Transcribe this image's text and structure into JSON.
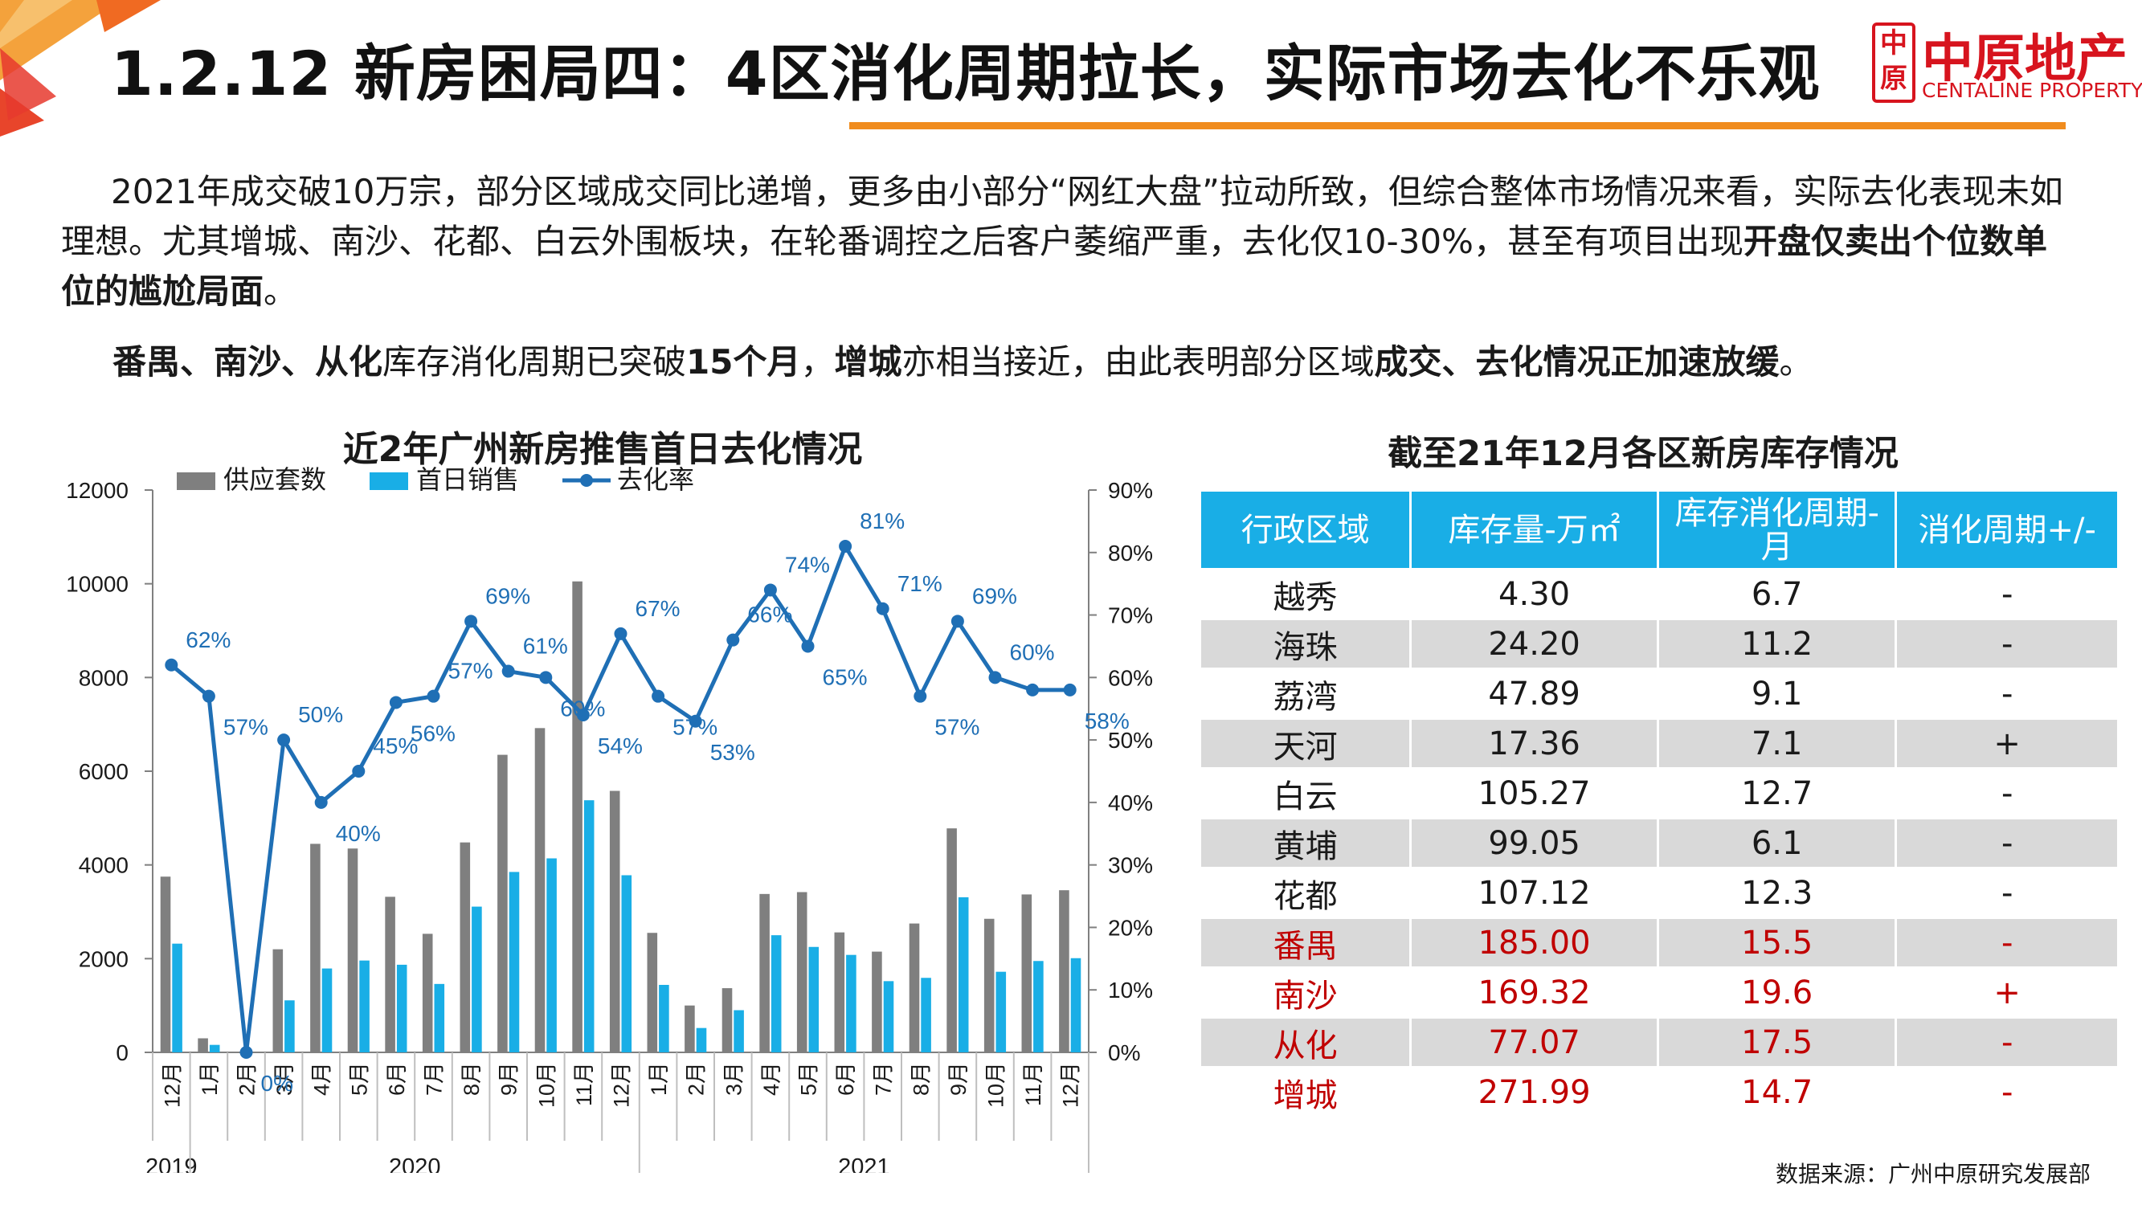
{
  "header": {
    "title": "1.2.12 新房困局四：4区消化周期拉长，实际市场去化不乐观",
    "logo_cn": "中原地产",
    "logo_mark": "中原",
    "logo_en": "CENTALINE PROPERTY"
  },
  "paragraph1": {
    "text_a": "2021年成交破10万宗，部分区域成交同比递增，更多由小部分“网红大盘”拉动所致，但综合整体市场情况来看，实际去化表现未如理想。尤其增城、南沙、花都、白云外围板块，在轮番调控之后客户萎缩严重，去化仅10-30%，甚至有项目出现",
    "text_b": "开盘仅卖出个位数单位的尴尬局面",
    "text_c": "。"
  },
  "paragraph2": {
    "s1": "番禺、南沙、从化",
    "s2": "库存消化周期已突破",
    "s3": "15个月",
    "s4": "，",
    "s5": "增城",
    "s6": "亦相当接近，由此表明部分区域",
    "s7": "成交、去化情况正加速放缓",
    "s8": "。"
  },
  "chart_title": "近2年广州新房推售首日去化情况",
  "chart_data": {
    "type": "bar",
    "title": "近2年广州新房推售首日去化情况",
    "categories": [
      "12月",
      "1月",
      "2月",
      "3月",
      "4月",
      "5月",
      "6月",
      "7月",
      "8月",
      "9月",
      "10月",
      "11月",
      "12月",
      "1月",
      "2月",
      "3月",
      "4月",
      "5月",
      "6月",
      "7月",
      "8月",
      "9月",
      "10月",
      "11月",
      "12月"
    ],
    "year_groups": [
      {
        "label": "2019",
        "start": 0,
        "end": 0
      },
      {
        "label": "2020",
        "start": 1,
        "end": 12
      },
      {
        "label": "2021",
        "start": 13,
        "end": 24
      }
    ],
    "series": [
      {
        "name": "供应套数",
        "kind": "bar",
        "axis": "left",
        "color": "#7f7f7f",
        "values": [
          3750,
          300,
          0,
          2200,
          4450,
          4350,
          3320,
          2530,
          4480,
          6350,
          6920,
          10050,
          5580,
          2550,
          1000,
          1370,
          3380,
          3420,
          2560,
          2150,
          2750,
          4780,
          2850,
          3370,
          3460
        ]
      },
      {
        "name": "首日销售",
        "kind": "bar",
        "axis": "left",
        "color": "#19aee6",
        "values": [
          2320,
          160,
          0,
          1110,
          1790,
          1960,
          1870,
          1460,
          3110,
          3850,
          4140,
          5380,
          3780,
          1440,
          520,
          900,
          2500,
          2250,
          2080,
          1520,
          1590,
          3310,
          1720,
          1950,
          2010
        ]
      },
      {
        "name": "去化率",
        "kind": "line",
        "axis": "right",
        "color": "#1f6fb5",
        "values": [
          62,
          57,
          0,
          50,
          40,
          45,
          56,
          57,
          69,
          61,
          60,
          54,
          67,
          57,
          53,
          66,
          74,
          65,
          81,
          71,
          57,
          69,
          60,
          58,
          58
        ],
        "labels": [
          "62%",
          "57%",
          "0%",
          "50%",
          "40%",
          "45%",
          "56%",
          "57%",
          "69%",
          "61%",
          "60%",
          "54%",
          "67%",
          "57%",
          "53%",
          "66%",
          "74%",
          "65%",
          "81%",
          "71%",
          "57%",
          "69%",
          "60%",
          "",
          "58%"
        ]
      }
    ],
    "left_axis": {
      "min": 0,
      "max": 12000,
      "ticks": [
        "0",
        "2000",
        "4000",
        "6000",
        "8000",
        "10000",
        "12000"
      ]
    },
    "right_axis": {
      "min": 0,
      "max": 90,
      "ticks": [
        "0%",
        "10%",
        "20%",
        "30%",
        "40%",
        "50%",
        "60%",
        "70%",
        "80%",
        "90%"
      ]
    },
    "legend_position": "top-left",
    "grid": false
  },
  "table": {
    "title": "截至21年12月各区新房库存情况",
    "headers": [
      "行政区域",
      "库存量-万㎡",
      "库存消化周期-月",
      "消化周期+/-"
    ],
    "rows": [
      {
        "district": "越秀",
        "inventory": "4.30",
        "cycle": "6.7",
        "change": "-"
      },
      {
        "district": "海珠",
        "inventory": "24.20",
        "cycle": "11.2",
        "change": "-"
      },
      {
        "district": "荔湾",
        "inventory": "47.89",
        "cycle": "9.1",
        "change": "-"
      },
      {
        "district": "天河",
        "inventory": "17.36",
        "cycle": "7.1",
        "change": "+"
      },
      {
        "district": "白云",
        "inventory": "105.27",
        "cycle": "12.7",
        "change": "-"
      },
      {
        "district": "黄埔",
        "inventory": "99.05",
        "cycle": "6.1",
        "change": "-"
      },
      {
        "district": "花都",
        "inventory": "107.12",
        "cycle": "12.3",
        "change": "-"
      },
      {
        "district": "番禺",
        "inventory": "185.00",
        "cycle": "15.5",
        "change": "-"
      },
      {
        "district": "南沙",
        "inventory": "169.32",
        "cycle": "19.6",
        "change": "+"
      },
      {
        "district": "从化",
        "inventory": "77.07",
        "cycle": "17.5",
        "change": "-"
      },
      {
        "district": "增城",
        "inventory": "271.99",
        "cycle": "14.7",
        "change": "-"
      }
    ],
    "highlight_color": "#c00000"
  },
  "source": "数据来源：广州中原研究发展部",
  "colors": {
    "accent_orange": "#f08c1e",
    "brand_red": "#d7141e",
    "header_blue": "#19aee6"
  }
}
